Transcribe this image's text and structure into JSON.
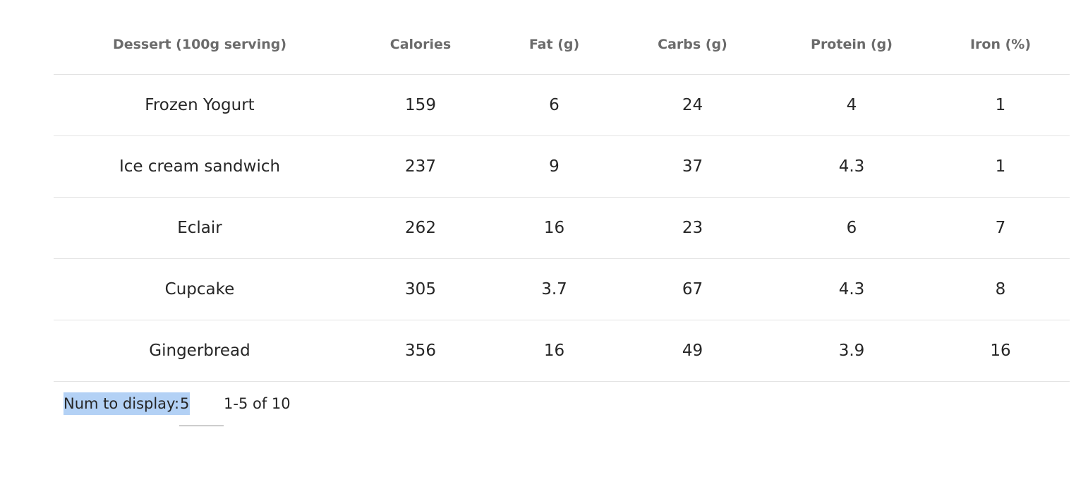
{
  "table": {
    "headers": [
      "Dessert (100g serving)",
      "Calories",
      "Fat (g)",
      "Carbs (g)",
      "Protein (g)",
      "Iron (%)"
    ],
    "rows": [
      [
        "Frozen Yogurt",
        "159",
        "6",
        "24",
        "4",
        "1"
      ],
      [
        "Ice cream sandwich",
        "237",
        "9",
        "37",
        "4.3",
        "1"
      ],
      [
        "Eclair",
        "262",
        "16",
        "23",
        "6",
        "7"
      ],
      [
        "Cupcake",
        "305",
        "3.7",
        "67",
        "4.3",
        "8"
      ],
      [
        "Gingerbread",
        "356",
        "16",
        "49",
        "3.9",
        "16"
      ]
    ]
  },
  "pagination": {
    "num_label": "Num to display:",
    "num_value": "5",
    "range_text": "1-5 of 10"
  },
  "colors": {
    "selection": "#b3d1f5",
    "header_text": "#6b6b6b",
    "divider": "#e3e3e3"
  }
}
